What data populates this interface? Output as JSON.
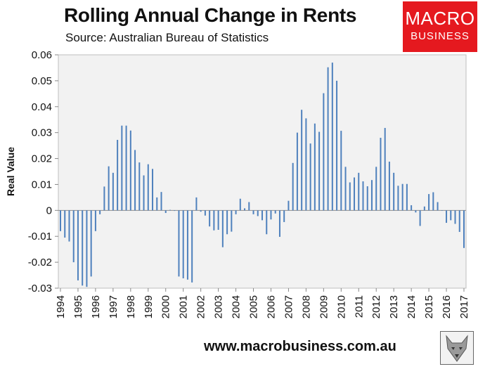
{
  "header": {
    "title": "Rolling Annual Change in Rents",
    "subtitle": "Source: Australian Bureau of Statistics"
  },
  "logo": {
    "line1": "MACRO",
    "line2": "BUSINESS"
  },
  "footer": {
    "url": "www.macrobusiness.com.au"
  },
  "colors": {
    "bar": "#4f81bd",
    "plot_bg": "#f2f2f2",
    "logo_red": "#e5191f"
  },
  "chart_data": {
    "type": "bar",
    "title": "Rolling Annual Change in Rents",
    "subtitle": "Source: Australian Bureau of Statistics",
    "xlabel": "",
    "ylabel": "Real Value",
    "ylim": [
      -0.03,
      0.06
    ],
    "yticks": [
      "0.06",
      "0.05",
      "0.04",
      "0.03",
      "0.02",
      "0.01",
      "0",
      "-0.01",
      "-0.02",
      "-0.03"
    ],
    "xlim": [
      1994,
      2017
    ],
    "year_labels": [
      "1994",
      "1995",
      "1996",
      "1997",
      "1998",
      "1999",
      "2000",
      "2001",
      "2002",
      "2003",
      "2004",
      "2005",
      "2006",
      "2007",
      "2008",
      "2009",
      "2010",
      "2011",
      "2012",
      "2013",
      "2014",
      "2015",
      "2016",
      "2017"
    ],
    "grid": false,
    "series": [
      {
        "x": [
          1994.0,
          1994.25,
          1994.5,
          1994.75,
          1995.0,
          1995.25,
          1995.5,
          1995.75,
          1996.0,
          1996.25,
          1996.5,
          1996.75,
          1997.0,
          1997.25,
          1997.5,
          1997.75,
          1998.0,
          1998.25,
          1998.5,
          1998.75,
          1999.0,
          1999.25,
          1999.5,
          1999.75,
          2000.0,
          2000.25,
          2000.5,
          2000.75,
          2001.0,
          2001.25,
          2001.5,
          2001.75,
          2002.0,
          2002.25,
          2002.5,
          2002.75,
          2003.0,
          2003.25,
          2003.5,
          2003.75,
          2004.0,
          2004.25,
          2004.5,
          2004.75,
          2005.0,
          2005.25,
          2005.5,
          2005.75,
          2006.0,
          2006.25,
          2006.5,
          2006.75,
          2007.0,
          2007.25,
          2007.5,
          2007.75,
          2008.0,
          2008.25,
          2008.5,
          2008.75,
          2009.0,
          2009.25,
          2009.5,
          2009.75,
          2010.0,
          2010.25,
          2010.5,
          2010.75,
          2011.0,
          2011.25,
          2011.5,
          2011.75,
          2012.0,
          2012.25,
          2012.5,
          2012.75,
          2013.0,
          2013.25,
          2013.5,
          2013.75,
          2014.0,
          2014.25,
          2014.5,
          2014.75,
          2015.0,
          2015.25,
          2015.5,
          2015.75,
          2016.0,
          2016.25,
          2016.5,
          2016.75,
          2017.0
        ],
        "values": [
          -0.008,
          -0.0105,
          -0.012,
          -0.02,
          -0.027,
          -0.029,
          -0.0295,
          -0.0255,
          -0.008,
          -0.0015,
          0.0092,
          0.017,
          0.0145,
          0.0272,
          0.0327,
          0.0327,
          0.0308,
          0.0233,
          0.0185,
          0.0135,
          0.0178,
          0.016,
          0.005,
          0.0071,
          -0.001,
          0.0002,
          -0.0002,
          -0.0255,
          -0.0262,
          -0.0267,
          -0.0278,
          0.005,
          -0.0005,
          -0.002,
          -0.0062,
          -0.0077,
          -0.0075,
          -0.0142,
          -0.0092,
          -0.0082,
          -0.0015,
          0.0045,
          0.0008,
          0.0032,
          -0.0015,
          -0.0022,
          -0.0038,
          -0.0092,
          -0.0035,
          -0.0012,
          -0.0102,
          -0.0045,
          0.0037,
          0.0183,
          0.03,
          0.0388,
          0.0355,
          0.0258,
          0.0335,
          0.0303,
          0.0452,
          0.0552,
          0.057,
          0.05,
          0.0307,
          0.0168,
          0.0108,
          0.0127,
          0.0145,
          0.0112,
          0.0093,
          0.0117,
          0.0168,
          0.028,
          0.0318,
          0.0188,
          0.0145,
          0.0095,
          0.0102,
          0.0102,
          0.002,
          -0.0008,
          -0.006,
          0.0015,
          0.0063,
          0.007,
          0.0032,
          0.0,
          -0.0048,
          -0.0038,
          -0.0052,
          -0.0083,
          -0.0145
        ]
      }
    ]
  }
}
